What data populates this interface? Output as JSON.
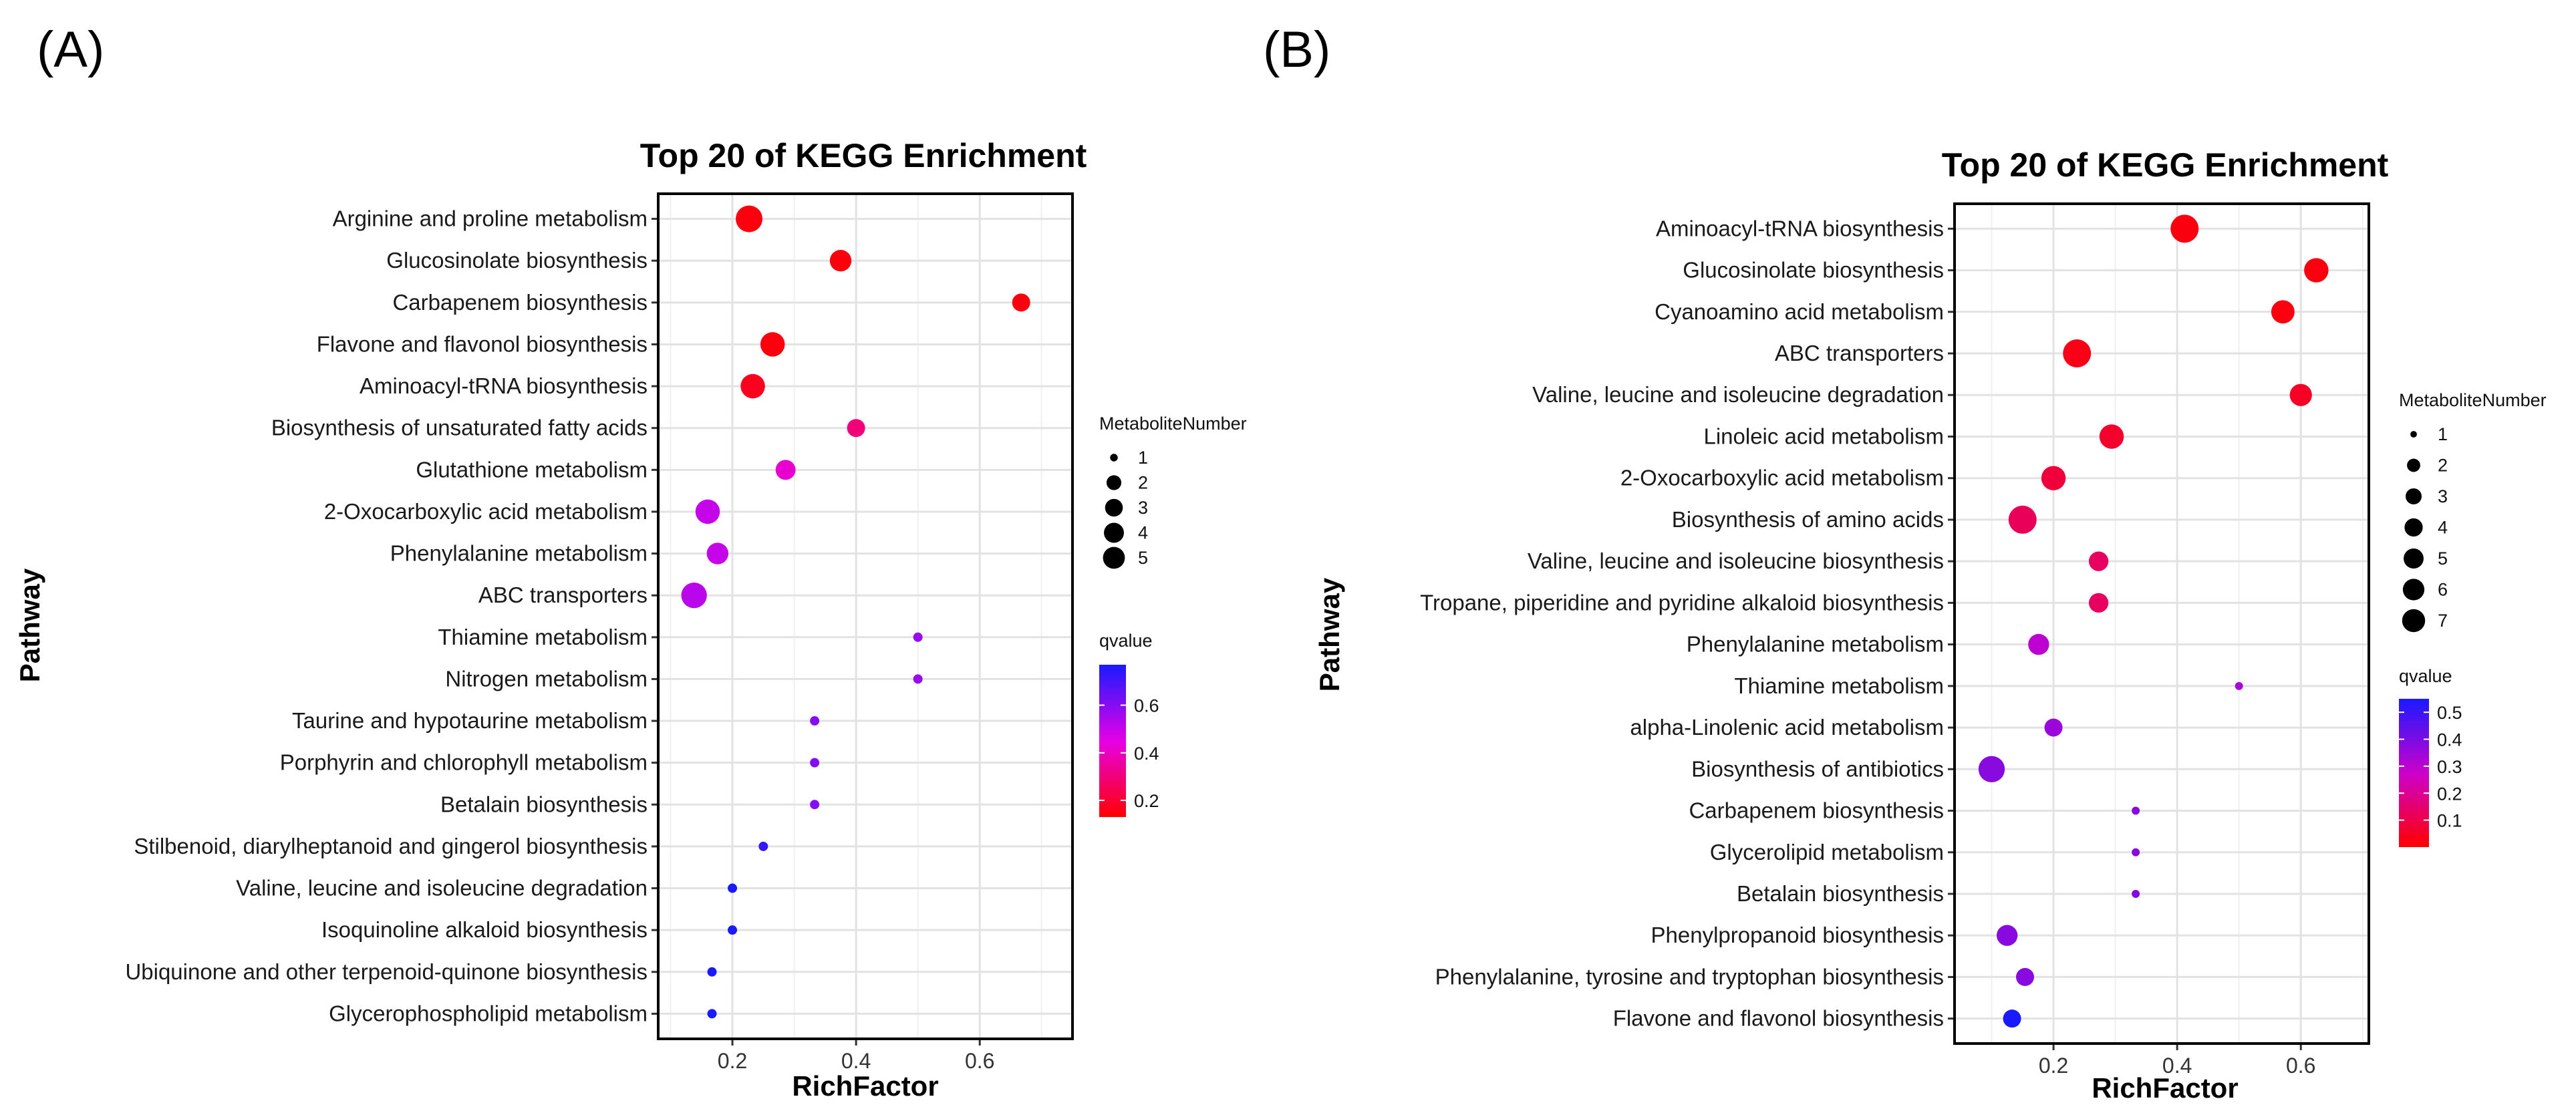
{
  "chart_data": [
    {
      "panel_label": "(A)",
      "type": "scatter",
      "title": "Top 20 of KEGG Enrichment",
      "xlabel": "RichFactor",
      "ylabel": "Pathway",
      "xlim": [
        0.08,
        0.75
      ],
      "xticks": [
        0.2,
        0.4,
        0.6
      ],
      "xtick_labels": [
        "0.2",
        "0.4",
        "0.6"
      ],
      "grid": true,
      "legend_position": "right",
      "size_legend_title": "MetaboliteNumber",
      "size_legend_values": [
        1,
        2,
        3,
        4,
        5
      ],
      "size_legend_labels": [
        "1",
        "2",
        "3",
        "4",
        "5"
      ],
      "color_legend_title": "qvalue",
      "color_range": [
        0.13,
        0.77
      ],
      "color_ticks": [
        0.2,
        0.4,
        0.6
      ],
      "color_tick_labels": [
        "0.2",
        "0.4",
        "0.6"
      ],
      "color_low": "#ff0000",
      "color_mid": "#e600e6",
      "color_high": "#1a1aff",
      "categories": [
        "Arginine and proline metabolism",
        "Glucosinolate biosynthesis",
        "Carbapenem biosynthesis",
        "Flavone and flavonol biosynthesis",
        "Aminoacyl-tRNA biosynthesis",
        "Biosynthesis of unsaturated fatty acids",
        "Glutathione metabolism",
        "2-Oxocarboxylic acid metabolism",
        "Phenylalanine metabolism",
        "ABC transporters",
        "Thiamine metabolism",
        "Nitrogen metabolism",
        "Taurine and hypotaurine metabolism",
        "Porphyrin and chlorophyll metabolism",
        "Betalain biosynthesis",
        "Stilbenoid, diarylheptanoid and gingerol biosynthesis",
        "Valine, leucine and isoleucine degradation",
        "Isoquinoline alkaloid biosynthesis",
        "Ubiquinone and other terpenoid-quinone biosynthesis",
        "Glycerophospholipid metabolism"
      ],
      "x": [
        0.227,
        0.375,
        0.667,
        0.265,
        0.233,
        0.4,
        0.286,
        0.16,
        0.176,
        0.138,
        0.5,
        0.5,
        0.333,
        0.333,
        0.333,
        0.25,
        0.2,
        0.2,
        0.167,
        0.167
      ],
      "size": [
        5,
        3,
        2,
        4,
        4,
        2,
        2.5,
        4,
        3,
        4.5,
        1,
        1,
        1,
        1,
        1,
        1,
        1,
        1,
        1,
        1
      ],
      "qvalue": [
        0.15,
        0.15,
        0.15,
        0.15,
        0.17,
        0.3,
        0.42,
        0.5,
        0.5,
        0.52,
        0.57,
        0.57,
        0.6,
        0.6,
        0.6,
        0.73,
        0.77,
        0.77,
        0.77,
        0.77
      ]
    },
    {
      "panel_label": "(B)",
      "type": "scatter",
      "title": "Top 20 of KEGG Enrichment",
      "xlabel": "RichFactor",
      "ylabel": "Pathway",
      "xlim": [
        0.04,
        0.71
      ],
      "xticks": [
        0.2,
        0.4,
        0.6
      ],
      "xtick_labels": [
        "0.2",
        "0.4",
        "0.6"
      ],
      "grid": true,
      "legend_position": "right",
      "size_legend_title": "MetaboliteNumber",
      "size_legend_values": [
        1,
        2,
        3,
        4,
        5,
        6,
        7
      ],
      "size_legend_labels": [
        "1",
        "2",
        "3",
        "4",
        "5",
        "6",
        "7"
      ],
      "color_legend_title": "qvalue",
      "color_range": [
        0.0,
        0.55
      ],
      "color_ticks": [
        0.1,
        0.2,
        0.3,
        0.4,
        0.5
      ],
      "color_tick_labels": [
        "0.1",
        "0.2",
        "0.3",
        "0.4",
        "0.5"
      ],
      "color_low": "#ff0000",
      "color_mid": "#cc00cc",
      "color_high": "#1a1aff",
      "categories": [
        "Aminoacyl-tRNA biosynthesis",
        "Glucosinolate biosynthesis",
        "Cyanoamino acid metabolism",
        "ABC transporters",
        "Valine, leucine and isoleucine degradation",
        "Linoleic acid metabolism",
        "2-Oxocarboxylic acid metabolism",
        "Biosynthesis of amino acids",
        "Valine, leucine and isoleucine biosynthesis",
        "Tropane, piperidine and pyridine alkaloid biosynthesis",
        "Phenylalanine metabolism",
        "Thiamine metabolism",
        "alpha-Linolenic acid metabolism",
        "Biosynthesis of antibiotics",
        "Carbapenem biosynthesis",
        "Glycerolipid metabolism",
        "Betalain biosynthesis",
        "Phenylpropanoid biosynthesis",
        "Phenylalanine, tyrosine and tryptophan biosynthesis",
        "Flavone and flavonol biosynthesis"
      ],
      "x": [
        0.412,
        0.625,
        0.571,
        0.238,
        0.6,
        0.294,
        0.2,
        0.15,
        0.273,
        0.273,
        0.176,
        0.5,
        0.2,
        0.1,
        0.333,
        0.333,
        0.333,
        0.125,
        0.154,
        0.133
      ],
      "size": [
        7,
        5,
        4.5,
        7,
        4,
        5,
        5,
        7,
        3,
        3,
        3.5,
        1,
        2.5,
        6,
        1,
        1,
        1,
        3.5,
        2.5,
        2.5
      ],
      "qvalue": [
        0.02,
        0.02,
        0.02,
        0.03,
        0.05,
        0.06,
        0.08,
        0.12,
        0.13,
        0.13,
        0.3,
        0.33,
        0.35,
        0.38,
        0.38,
        0.38,
        0.38,
        0.38,
        0.38,
        0.55
      ]
    }
  ]
}
